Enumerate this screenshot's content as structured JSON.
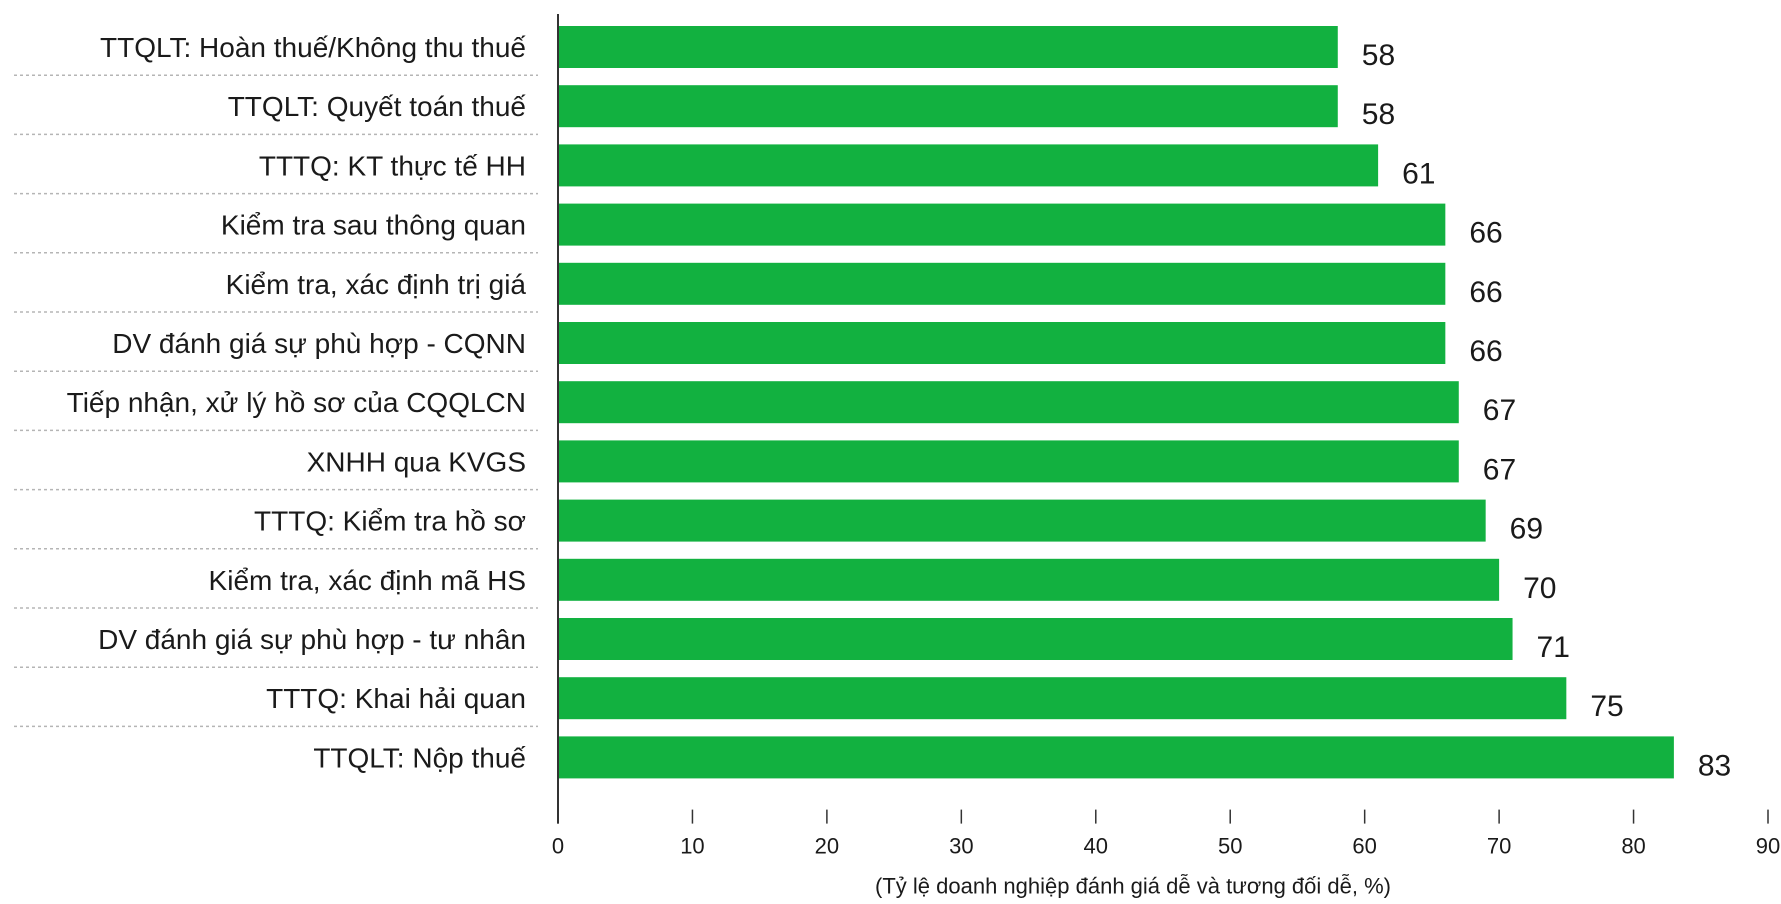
{
  "chart_data": {
    "type": "bar",
    "orientation": "horizontal",
    "categories": [
      "TTQLT: Hoàn thuế/Không thu thuế",
      "TTQLT: Quyết toán thuế",
      "TTTQ: KT thực tế HH",
      "Kiểm tra sau thông quan",
      "Kiểm tra, xác định trị giá",
      "DV đánh giá sự phù hợp - CQNN",
      "Tiếp nhận, xử lý hồ sơ của CQQLCN",
      "XNHH qua KVGS",
      "TTTQ: Kiểm tra hồ sơ",
      "Kiểm tra, xác định mã HS",
      "DV đánh giá sự phù hợp - tư nhân",
      "TTTQ: Khai hải quan",
      "TTQLT: Nộp thuế"
    ],
    "values": [
      58,
      58,
      61,
      66,
      66,
      66,
      67,
      67,
      69,
      70,
      71,
      75,
      83
    ],
    "value_labels": [
      "58",
      "58",
      "61",
      "66",
      "66",
      "66",
      "67",
      "67",
      "69",
      "70",
      "71",
      "75",
      "83"
    ],
    "xlim": [
      0,
      90
    ],
    "x_ticks": [
      "0",
      "10",
      "20",
      "30",
      "40",
      "50",
      "60",
      "70",
      "80",
      "90"
    ],
    "xlabel": "(Tỷ lệ doanh nghiệp đánh giá dễ và tương đối dễ, %)",
    "ylabel": "",
    "title": "",
    "legend": "none",
    "bar_color": "#12b140",
    "separator_color": "#b5b5b5"
  }
}
